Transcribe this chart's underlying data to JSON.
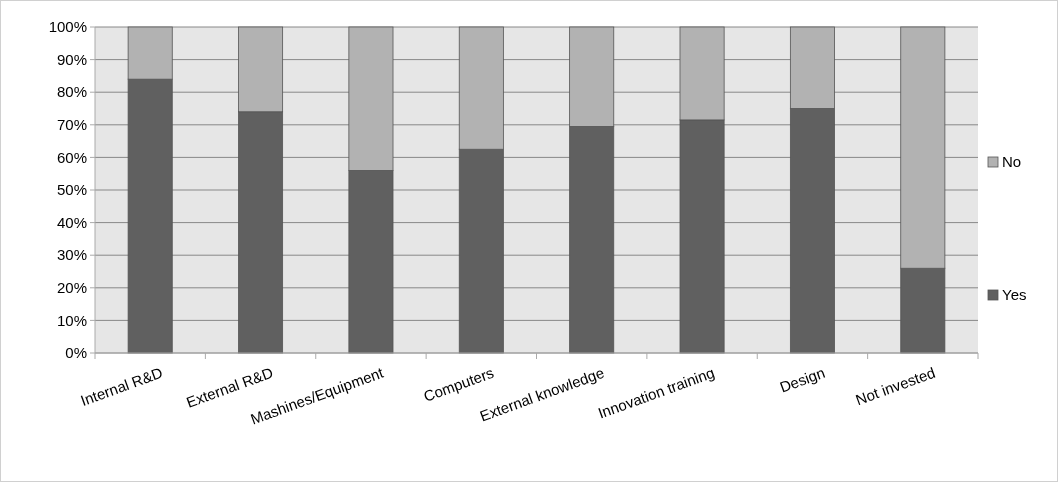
{
  "chart_data": {
    "type": "bar",
    "stacked": true,
    "categories": [
      "Internal R&D",
      "External R&D",
      "Mashines/Equipment",
      "Computers",
      "External knowledge",
      "Innovation training",
      "Design",
      "Not invested"
    ],
    "series": [
      {
        "name": "Yes",
        "color": "#606060",
        "values": [
          84,
          74,
          56,
          62.5,
          69.5,
          71.5,
          75,
          26
        ]
      },
      {
        "name": "No",
        "color": "#b2b2b2",
        "values": [
          16,
          26,
          44,
          37.5,
          30.5,
          28.5,
          25,
          74
        ]
      }
    ],
    "ylim": [
      0,
      100
    ],
    "yticks": [
      {
        "value": 0,
        "label": "0%"
      },
      {
        "value": 10,
        "label": "10%"
      },
      {
        "value": 20,
        "label": "20%"
      },
      {
        "value": 30,
        "label": "30%"
      },
      {
        "value": 40,
        "label": "40%"
      },
      {
        "value": 50,
        "label": "50%"
      },
      {
        "value": 60,
        "label": "60%"
      },
      {
        "value": 70,
        "label": "70%"
      },
      {
        "value": 80,
        "label": "80%"
      },
      {
        "value": 90,
        "label": "90%"
      },
      {
        "value": 100,
        "label": "100%"
      }
    ],
    "grid": "y",
    "legend": "right"
  }
}
